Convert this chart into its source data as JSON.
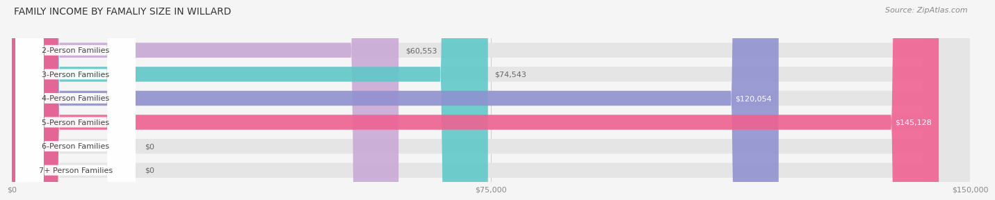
{
  "title": "FAMILY INCOME BY FAMALIY SIZE IN WILLARD",
  "source": "Source: ZipAtlas.com",
  "categories": [
    "2-Person Families",
    "3-Person Families",
    "4-Person Families",
    "5-Person Families",
    "6-Person Families",
    "7+ Person Families"
  ],
  "values": [
    60553,
    74543,
    120054,
    145128,
    0,
    0
  ],
  "bar_colors": [
    "#c9a8d4",
    "#5ec8c8",
    "#9090d0",
    "#f06090",
    "#f5c99a",
    "#f0a8a8"
  ],
  "x_max": 150000,
  "x_ticks": [
    0,
    75000,
    150000
  ],
  "x_tick_labels": [
    "$0",
    "$75,000",
    "$150,000"
  ],
  "background_color": "#f5f5f5",
  "bar_bg_color": "#e5e5e5",
  "title_fontsize": 10,
  "source_fontsize": 8,
  "value_fontsize": 8,
  "category_fontsize": 8
}
